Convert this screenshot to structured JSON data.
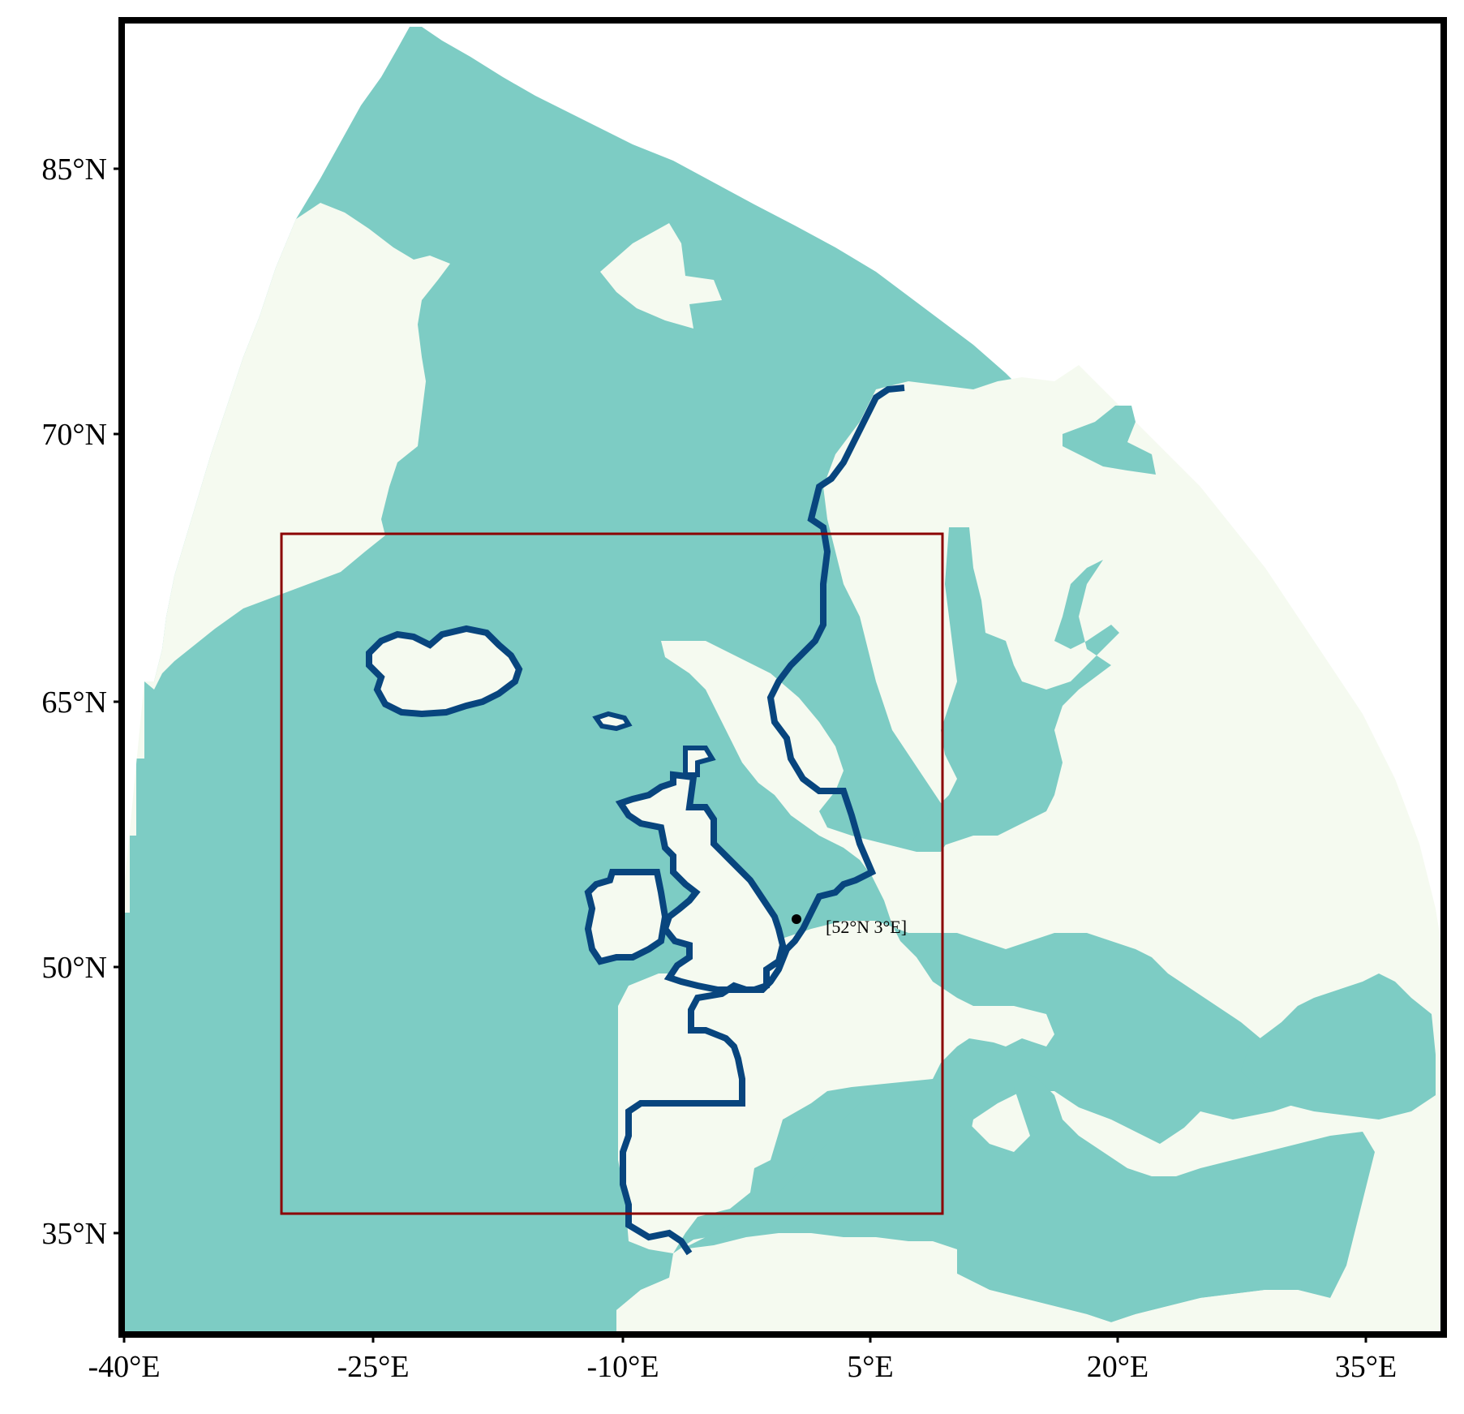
{
  "map": {
    "colors": {
      "ocean": "#7dccc4",
      "land": "#f5faf0",
      "outside": "#ffffff",
      "coast_outline": "#08457e",
      "region_box": "#8b0000",
      "frame": "#000000"
    },
    "lon_range": [
      -40.5,
      42.5
    ],
    "lat_range": [
      28.5,
      93.5
    ],
    "x_ticks": [
      {
        "value": -40,
        "label": "-40°E"
      },
      {
        "value": -25,
        "label": "-25°E"
      },
      {
        "value": -10,
        "label": "-10°E"
      },
      {
        "value": 5,
        "label": "5°E"
      },
      {
        "value": 20,
        "label": "20°E"
      },
      {
        "value": 35,
        "label": "35°E"
      }
    ],
    "y_ticks": [
      {
        "value": 85,
        "label": "85°N"
      },
      {
        "value": 70,
        "label": "70°N"
      },
      {
        "value": 65,
        "label": "65°N"
      },
      {
        "value": 50,
        "label": "50°N"
      },
      {
        "value": 35,
        "label": "35°N"
      }
    ],
    "region_box": {
      "lon_min": -30.5,
      "lon_max": 9.5,
      "lat_min": 35.8,
      "lat_max": 67.5
    },
    "marked_point": {
      "lat": 52,
      "lon": 3,
      "label": "[52°N 3°E]"
    }
  }
}
